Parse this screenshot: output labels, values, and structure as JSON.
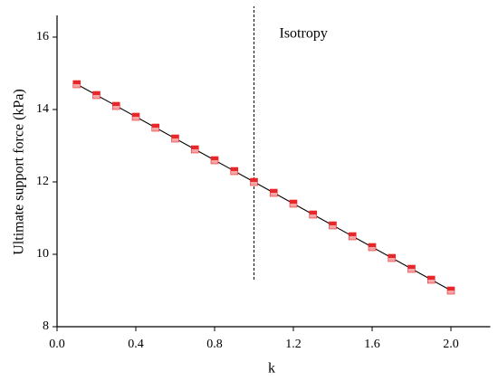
{
  "chart_data": {
    "type": "line",
    "x_label": "k",
    "y_label": "Ultimate support force (kPa)",
    "x": [
      0.1,
      0.2,
      0.3,
      0.4,
      0.5,
      0.6,
      0.7,
      0.8,
      0.9,
      1.0,
      1.1,
      1.2,
      1.3,
      1.4,
      1.5,
      1.6,
      1.7,
      1.8,
      1.9,
      2.0
    ],
    "series": [
      {
        "color": "#e8272a",
        "values": [
          14.7,
          14.4,
          14.1,
          13.8,
          13.5,
          13.2,
          12.9,
          12.6,
          12.3,
          12.0,
          11.7,
          11.4,
          11.1,
          10.8,
          10.5,
          10.2,
          9.9,
          9.6,
          9.3,
          9.0
        ]
      }
    ],
    "xlim": [
      0,
      2.2
    ],
    "xticks": [
      {
        "value": 0,
        "label": "0.0"
      },
      0.4,
      0.8,
      1.2,
      1.6,
      {
        "value": 2,
        "label": "2.0"
      }
    ],
    "ylim": [
      8,
      16.6
    ],
    "yticks": [
      8,
      10,
      12,
      14,
      16
    ],
    "vline": {
      "x": 1.0,
      "y": [
        9.3,
        16.85
      ],
      "label": "Isotropy"
    }
  }
}
